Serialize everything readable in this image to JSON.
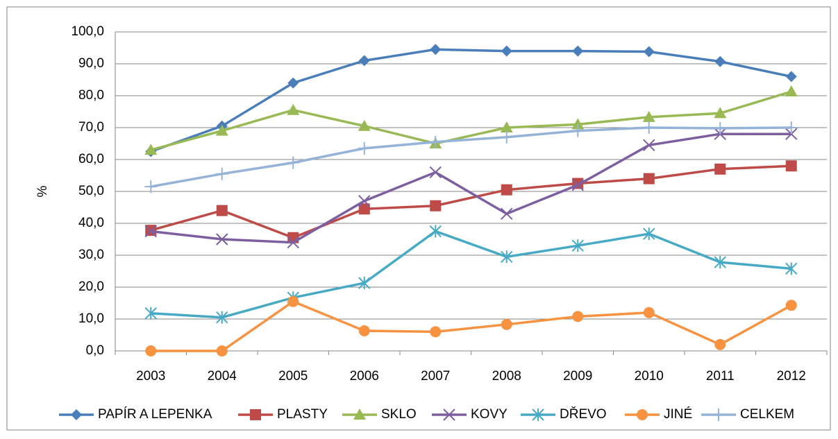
{
  "chart_data": {
    "type": "line",
    "y_label": "%",
    "categories": [
      "2003",
      "2004",
      "2005",
      "2006",
      "2007",
      "2008",
      "2009",
      "2010",
      "2011",
      "2012"
    ],
    "ylim": [
      0,
      100
    ],
    "yticks": [
      {
        "value": 0,
        "label": "0,0"
      },
      {
        "value": 10,
        "label": "10,0"
      },
      {
        "value": 20,
        "label": "20,0"
      },
      {
        "value": 30,
        "label": "30,0"
      },
      {
        "value": 40,
        "label": "40,0"
      },
      {
        "value": 50,
        "label": "50,0"
      },
      {
        "value": 60,
        "label": "60,0"
      },
      {
        "value": 70,
        "label": "70,0"
      },
      {
        "value": 80,
        "label": "80,0"
      },
      {
        "value": 90,
        "label": "90,0"
      },
      {
        "value": 100,
        "label": "100,0"
      }
    ],
    "grid": true,
    "legend": "bottom",
    "series": [
      {
        "name": "PAPÍR A LEPENKA",
        "color": "#4a7ebb",
        "marker": "diamond",
        "values": [
          62.5,
          70.5,
          84,
          91,
          94.5,
          94,
          94,
          93.8,
          90.7,
          86
        ]
      },
      {
        "name": "PLASTY",
        "color": "#be4b48",
        "marker": "square",
        "values": [
          37.8,
          44,
          35.5,
          44.5,
          45.5,
          50.5,
          52.5,
          54,
          57,
          58
        ]
      },
      {
        "name": "SKLO",
        "color": "#98b954",
        "marker": "triangle",
        "values": [
          63,
          69,
          75.5,
          70.5,
          65,
          70,
          71,
          73.3,
          74.5,
          81.3
        ]
      },
      {
        "name": "KOVY",
        "color": "#7d5fa0",
        "marker": "x",
        "values": [
          37.5,
          35,
          34,
          47,
          56,
          43,
          52,
          64.5,
          68,
          68
        ]
      },
      {
        "name": "DŘEVO",
        "color": "#46aac5",
        "marker": "star",
        "values": [
          11.8,
          10.5,
          16.7,
          21.3,
          37.5,
          29.5,
          33,
          36.7,
          27.8,
          25.8
        ]
      },
      {
        "name": "JINÉ",
        "color": "#f69240",
        "marker": "circle",
        "values": [
          0,
          0,
          15.5,
          6.3,
          6,
          8.3,
          10.8,
          12,
          2,
          14.3
        ]
      },
      {
        "name": "CELKEM",
        "color": "#95b3d7",
        "marker": "plus",
        "values": [
          51.5,
          55.5,
          59,
          63.5,
          65.5,
          67,
          69,
          70,
          69.8,
          70
        ]
      }
    ]
  }
}
